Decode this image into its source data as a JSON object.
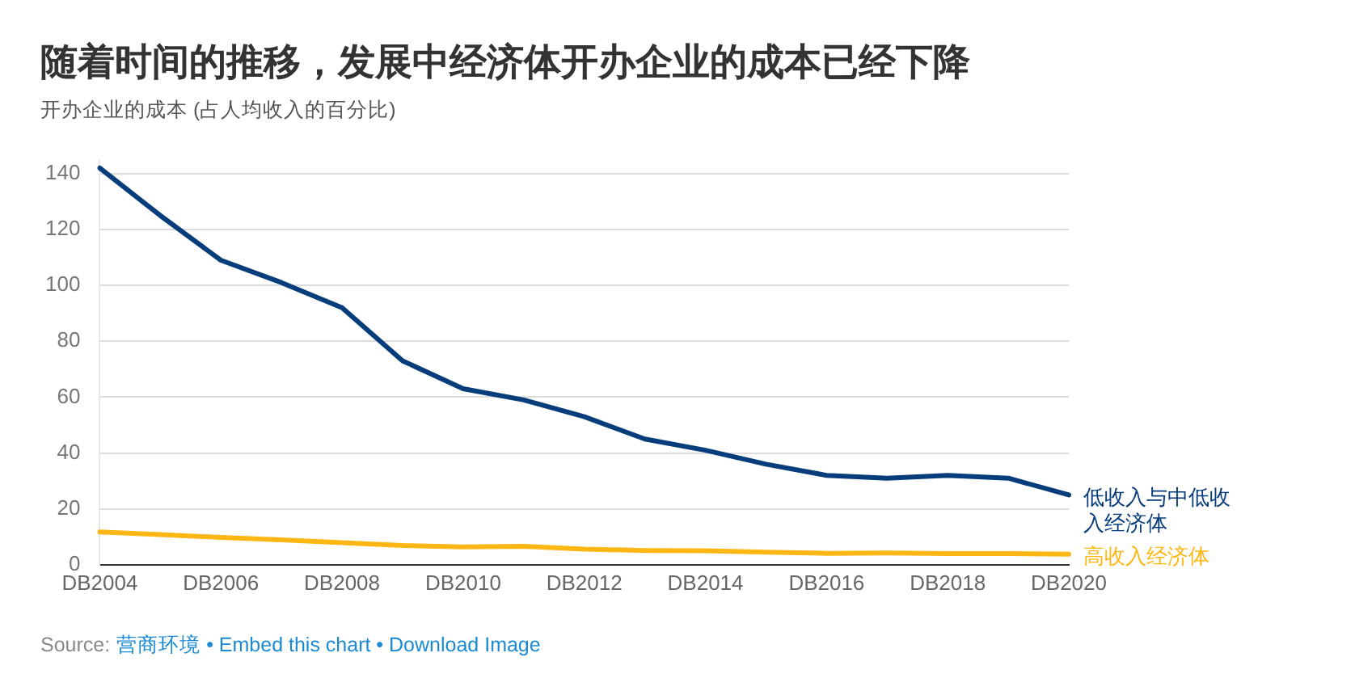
{
  "chart_data": {
    "type": "line",
    "title": "随着时间的推移，发展中经济体开办企业的成本已经下降",
    "subtitle": "开办企业的成本 (占人均收入的百分比)",
    "categories": [
      "DB2004",
      null,
      "DB2006",
      null,
      "DB2008",
      null,
      "DB2010",
      null,
      "DB2012",
      null,
      "DB2014",
      null,
      "DB2016",
      null,
      "DB2018",
      null,
      "DB2020"
    ],
    "series": [
      {
        "name": "低收入与中低收入经济体",
        "color": "#063d7a",
        "values": [
          142,
          125,
          109,
          101,
          92,
          73,
          63,
          59,
          53,
          45,
          41,
          36,
          32,
          31,
          32,
          31,
          25
        ]
      },
      {
        "name": "高收入经济体",
        "color": "#fdb714",
        "values": [
          11.7,
          10.8,
          9.8,
          8.9,
          7.9,
          6.9,
          6.4,
          6.6,
          5.6,
          5.1,
          5.0,
          4.5,
          4.1,
          4.2,
          4.0,
          4.0,
          3.8
        ]
      }
    ],
    "ylim": [
      0,
      145
    ],
    "yticks": [
      0,
      20,
      40,
      60,
      80,
      100,
      120,
      140
    ],
    "grid": "y",
    "legend": false,
    "marker": "none",
    "line_style": "solid",
    "annotations": [
      "Source:",
      "营商环境 • Embed this chart • Download Image"
    ]
  }
}
